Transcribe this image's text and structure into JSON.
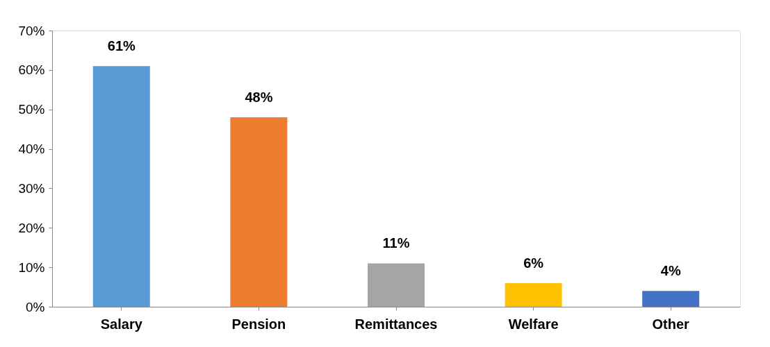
{
  "chart_data": {
    "type": "bar",
    "categories": [
      "Salary",
      "Pension",
      "Remittances",
      "Welfare",
      "Other"
    ],
    "values": [
      61,
      48,
      11,
      6,
      4
    ],
    "colors": [
      "#5b9bd5",
      "#ed7d31",
      "#a5a5a5",
      "#ffc000",
      "#4472c4"
    ],
    "value_labels": [
      "61%",
      "48%",
      "11%",
      "6%",
      "4%"
    ],
    "ylim": [
      0,
      70
    ],
    "yticks": [
      {
        "value": 0,
        "label": "0%"
      },
      {
        "value": 10,
        "label": "10%"
      },
      {
        "value": 20,
        "label": "20%"
      },
      {
        "value": 30,
        "label": "30%"
      },
      {
        "value": 40,
        "label": "40%"
      },
      {
        "value": 50,
        "label": "50%"
      },
      {
        "value": 60,
        "label": "60%"
      },
      {
        "value": 70,
        "label": "70%"
      }
    ],
    "grid": false
  }
}
